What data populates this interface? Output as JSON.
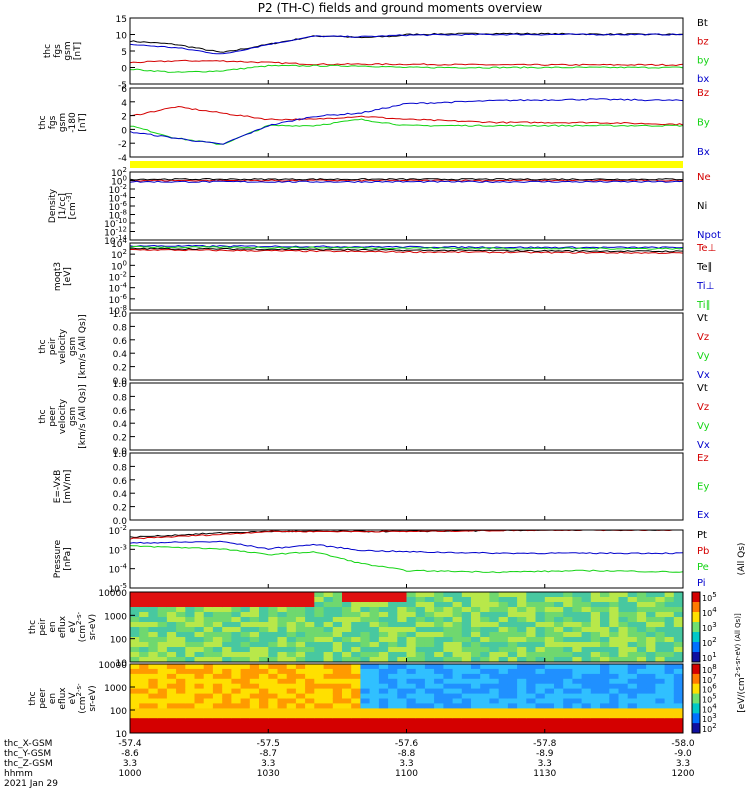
{
  "title": "P2 (TH-C) fields and ground moments overview",
  "date": "2021 Jan 29",
  "colors": {
    "black": "#000000",
    "red": "#d40000",
    "green": "#14d414",
    "blue": "#0000cc",
    "yellow": "#ffff00"
  },
  "xaxis": {
    "hhmm": [
      "1000",
      "1030",
      "1100",
      "1130",
      "1200"
    ],
    "rows": [
      {
        "label": "thc_X-GSM",
        "values": [
          "-57.4",
          "-57.5",
          "-57.6",
          "-57.8",
          "-58.0"
        ]
      },
      {
        "label": "thc_Y-GSM",
        "values": [
          "-8.6",
          "-8.7",
          "-8.8",
          "-8.9",
          "-9.0"
        ]
      },
      {
        "label": "thc_Z-GSM",
        "values": [
          "3.3",
          "3.3",
          "3.3",
          "3.3",
          "3.3"
        ]
      },
      {
        "label": "hhmm",
        "values": [
          "1000",
          "1030",
          "1100",
          "1130",
          "1200"
        ]
      }
    ]
  },
  "chart_data": [
    {
      "type": "line",
      "panel": "fgs",
      "ylabel": [
        "thc",
        "fgs",
        "gsm",
        "[nT]"
      ],
      "yticks": [
        "15",
        "10",
        "5",
        "0",
        "-5"
      ],
      "ylim": [
        -5,
        15
      ],
      "series": [
        {
          "name": "Bt",
          "color": "#000000",
          "t": [
            0,
            20,
            40,
            60,
            80,
            90,
            100,
            115,
            120,
            140,
            160,
            200,
            240
          ],
          "v": [
            8,
            7,
            4.5,
            7,
            9.5,
            9.5,
            9,
            9.5,
            10,
            10.2,
            10.3,
            10.1,
            10
          ]
        },
        {
          "name": "bz",
          "color": "#d40000",
          "t": [
            0,
            20,
            40,
            60,
            80,
            100,
            120,
            160,
            200,
            240
          ],
          "v": [
            1.5,
            2,
            2,
            1.5,
            1,
            1,
            1,
            0.8,
            0.8,
            0.8
          ]
        },
        {
          "name": "by",
          "color": "#14d414",
          "t": [
            0,
            20,
            40,
            60,
            80,
            100,
            120,
            160,
            200,
            240
          ],
          "v": [
            -0.5,
            -1.5,
            -1,
            0.5,
            0.5,
            0.5,
            0,
            0,
            0,
            0
          ]
        },
        {
          "name": "bx",
          "color": "#0000cc",
          "t": [
            0,
            20,
            40,
            60,
            80,
            100,
            120,
            160,
            200,
            240
          ],
          "v": [
            7,
            6,
            4,
            7,
            9.5,
            9.3,
            9.8,
            10,
            10,
            10
          ]
        }
      ]
    },
    {
      "type": "line",
      "panel": "fgs_gsm",
      "ylabel": [
        "thc",
        "fgs",
        "gsm",
        "-180",
        "[nT]"
      ],
      "yticks": [
        "6",
        "4",
        "2",
        "0",
        "-2",
        "-4"
      ],
      "ylim": [
        -5,
        6
      ],
      "series": [
        {
          "name": "Bz",
          "color": "#d40000",
          "t": [
            0,
            20,
            40,
            60,
            80,
            100,
            120,
            160,
            200,
            240
          ],
          "v": [
            1.5,
            3,
            2,
            1,
            1,
            1.5,
            1,
            0.5,
            0.5,
            0.2
          ]
        },
        {
          "name": "By",
          "color": "#14d414",
          "t": [
            0,
            20,
            40,
            60,
            80,
            100,
            120,
            160,
            200,
            240
          ],
          "v": [
            0,
            -2,
            -3,
            0,
            0,
            1,
            0,
            0,
            0,
            0
          ]
        },
        {
          "name": "Bx",
          "color": "#0000cc",
          "t": [
            0,
            20,
            40,
            60,
            80,
            100,
            120,
            160,
            200,
            240
          ],
          "v": [
            -1,
            -2,
            -3,
            0,
            1.5,
            2,
            3.5,
            4,
            4.2,
            4
          ]
        }
      ]
    },
    {
      "type": "line",
      "panel": "density",
      "ylabel": [
        "Density",
        "[1/cc]",
        "[cm^-3]"
      ],
      "yticks": [
        "10^2",
        "10^0",
        "10^-2",
        "10^-4",
        "10^-6",
        "10^-8",
        "10^-10",
        "10^-12",
        "10^-14"
      ],
      "ylim": [
        -14,
        2
      ],
      "series": [
        {
          "name": "Ne",
          "color": "#d40000",
          "t": [
            0,
            60,
            120,
            180,
            240
          ],
          "v": [
            0,
            0,
            0,
            0,
            0
          ]
        },
        {
          "name": "Ni",
          "color": "#000000",
          "t": [
            0,
            60,
            120,
            180,
            240
          ],
          "v": [
            0.3,
            0.3,
            0.3,
            0.3,
            0.3
          ]
        },
        {
          "name": "Npot",
          "color": "#0000cc",
          "t": [
            0,
            60,
            120,
            180,
            240
          ],
          "v": [
            -0.3,
            -0.3,
            -0.3,
            -0.3,
            -0.3
          ]
        }
      ]
    },
    {
      "type": "line",
      "panel": "temperature",
      "ylabel": [
        "moqt3",
        "[eV]"
      ],
      "yticks": [
        "10^4",
        "10^2",
        "10^0",
        "10^-2",
        "10^-4",
        "10^-6",
        "10^-8"
      ],
      "ylim": [
        -8,
        4
      ],
      "series": [
        {
          "name": "Te⊥",
          "color": "#d40000",
          "t": [
            0,
            60,
            120,
            180,
            240
          ],
          "v": [
            2.8,
            2.6,
            2.4,
            2.3,
            2.2
          ]
        },
        {
          "name": "Te∥",
          "color": "#000000",
          "t": [
            0,
            60,
            120,
            180,
            240
          ],
          "v": [
            3,
            2.9,
            2.7,
            2.6,
            2.5
          ]
        },
        {
          "name": "Ti⊥",
          "color": "#0000cc",
          "t": [
            0,
            60,
            120,
            180,
            240
          ],
          "v": [
            3.5,
            3.4,
            3.3,
            3.2,
            3.2
          ]
        },
        {
          "name": "Ti∥",
          "color": "#14d414",
          "t": [
            0,
            60,
            120,
            180,
            240
          ],
          "v": [
            3.3,
            3.2,
            3.1,
            3.0,
            3.0
          ]
        }
      ]
    },
    {
      "type": "line",
      "panel": "peir_velocity",
      "ylabel": [
        "thc",
        "peir",
        "velocity",
        "gsm",
        "[km/s (All Qs)]"
      ],
      "yticks": [
        "1.0",
        "0.8",
        "0.6",
        "0.4",
        "0.2",
        "0.0"
      ],
      "ylim": [
        0,
        1
      ],
      "series": [
        {
          "name": "Vt",
          "color": "#000000"
        },
        {
          "name": "Vz",
          "color": "#d40000"
        },
        {
          "name": "Vy",
          "color": "#14d414"
        },
        {
          "name": "Vx",
          "color": "#0000cc"
        }
      ]
    },
    {
      "type": "line",
      "panel": "peer_velocity",
      "ylabel": [
        "thc",
        "peer",
        "velocity",
        "gsm",
        "[km/s (All Qs)]"
      ],
      "yticks": [
        "1.0",
        "0.8",
        "0.6",
        "0.4",
        "0.2",
        "0.0"
      ],
      "ylim": [
        0,
        1
      ],
      "series": [
        {
          "name": "Vt",
          "color": "#000000"
        },
        {
          "name": "Vz",
          "color": "#d40000"
        },
        {
          "name": "Vy",
          "color": "#14d414"
        },
        {
          "name": "Vx",
          "color": "#0000cc"
        }
      ]
    },
    {
      "type": "line",
      "panel": "efield",
      "ylabel": [
        "E=-VxB",
        "[mV/m]"
      ],
      "yticks": [
        "1.0",
        "0.8",
        "0.6",
        "0.4",
        "0.2",
        "0.0"
      ],
      "ylim": [
        0,
        1
      ],
      "series": [
        {
          "name": "Ez",
          "color": "#d40000"
        },
        {
          "name": "Ey",
          "color": "#14d414"
        },
        {
          "name": "Ex",
          "color": "#0000cc"
        }
      ]
    },
    {
      "type": "line",
      "panel": "pressure",
      "ylabel": [
        "Pressure",
        "[nPa]"
      ],
      "yticks": [
        "10^-2",
        "10^-3",
        "10^-4",
        "10^-5"
      ],
      "ylim": [
        -5.5,
        -1.5
      ],
      "note": "(All Qs)",
      "series": [
        {
          "name": "Pt",
          "color": "#000000",
          "t": [
            0,
            40,
            60,
            120,
            180,
            240
          ],
          "v": [
            -2,
            -1.7,
            -1.6,
            -1.6,
            -1.5,
            -1.5
          ]
        },
        {
          "name": "Pb",
          "color": "#d40000",
          "t": [
            0,
            40,
            60,
            120,
            180,
            240
          ],
          "v": [
            -2.1,
            -1.8,
            -1.6,
            -1.6,
            -1.5,
            -1.5
          ]
        },
        {
          "name": "Pe",
          "color": "#14d414",
          "t": [
            0,
            40,
            60,
            80,
            100,
            120,
            160,
            200,
            240
          ],
          "v": [
            -2.6,
            -2.8,
            -3.2,
            -3.0,
            -3.8,
            -4.3,
            -4.4,
            -4.3,
            -4.4
          ]
        },
        {
          "name": "Pi",
          "color": "#0000cc",
          "t": [
            0,
            40,
            60,
            80,
            100,
            120,
            160,
            200,
            240
          ],
          "v": [
            -2.4,
            -2.3,
            -2.8,
            -2.5,
            -2.9,
            -3.0,
            -3.1,
            -3.1,
            -3.1
          ]
        }
      ]
    },
    {
      "type": "heatmap",
      "panel": "peir_eflux",
      "ylabel": [
        "thc",
        "peir",
        "en",
        "eflux",
        "eV",
        "(cm^2-s-",
        "sr-eV)"
      ],
      "yticks": [
        "10000",
        "1000",
        "100",
        "10"
      ],
      "colorbar_label": "[eV/(cm^2-s-sr-eV) (All Qs)]",
      "colorbar_ticks": [
        "10^5",
        "10^4",
        "10^3",
        "10^2",
        "10^1"
      ]
    },
    {
      "type": "heatmap",
      "panel": "peer_eflux",
      "ylabel": [
        "thc",
        "peer",
        "en",
        "eflux",
        "eV",
        "(cm^2-s-",
        "sr-eV)"
      ],
      "yticks": [
        "10000",
        "1000",
        "100",
        "10"
      ],
      "colorbar_label": "[eV/(cm^2-s-sr-eV) (All Qs)]",
      "colorbar_ticks": [
        "10^8",
        "10^7",
        "10^6",
        "10^5",
        "10^4",
        "10^3",
        "10^2"
      ]
    }
  ]
}
